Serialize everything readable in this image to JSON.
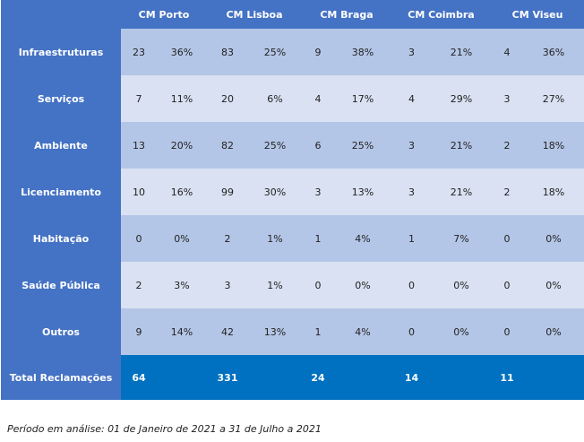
{
  "table": {
    "columns": [
      "CM Porto",
      "CM Lisboa",
      "CM Braga",
      "CM Coimbra",
      "CM Viseu"
    ],
    "rows": [
      {
        "label": "Infraestruturas",
        "values": [
          "23",
          "36%",
          "83",
          "25%",
          "9",
          "38%",
          "3",
          "21%",
          "4",
          "36%"
        ]
      },
      {
        "label": "Serviços",
        "values": [
          "7",
          "11%",
          "20",
          "6%",
          "4",
          "17%",
          "4",
          "29%",
          "3",
          "27%"
        ]
      },
      {
        "label": "Ambiente",
        "values": [
          "13",
          "20%",
          "82",
          "25%",
          "6",
          "25%",
          "3",
          "21%",
          "2",
          "18%"
        ]
      },
      {
        "label": "Licenciamento",
        "values": [
          "10",
          "16%",
          "99",
          "30%",
          "3",
          "13%",
          "3",
          "21%",
          "2",
          "18%"
        ]
      },
      {
        "label": "Habitação",
        "values": [
          "0",
          "0%",
          "2",
          "1%",
          "1",
          "4%",
          "1",
          "7%",
          "0",
          "0%"
        ]
      },
      {
        "label": "Saúde Pública",
        "values": [
          "2",
          "3%",
          "3",
          "1%",
          "0",
          "0%",
          "0",
          "0%",
          "0",
          "0%"
        ]
      },
      {
        "label": "Outros",
        "values": [
          "9",
          "14%",
          "42",
          "13%",
          "1",
          "4%",
          "0",
          "0%",
          "0",
          "0%"
        ]
      }
    ],
    "total": {
      "label": "Total Reclamações",
      "values": [
        "64",
        "331",
        "24",
        "14",
        "11"
      ]
    }
  },
  "footnote": "Período em análise: 01 de Janeiro de 2021 a 31 de Julho a 2021",
  "colors": {
    "header_blue": "#4472C4",
    "row_dark": "#B4C6E7",
    "row_light": "#D9E1F2",
    "total_blue": "#0070C0"
  }
}
